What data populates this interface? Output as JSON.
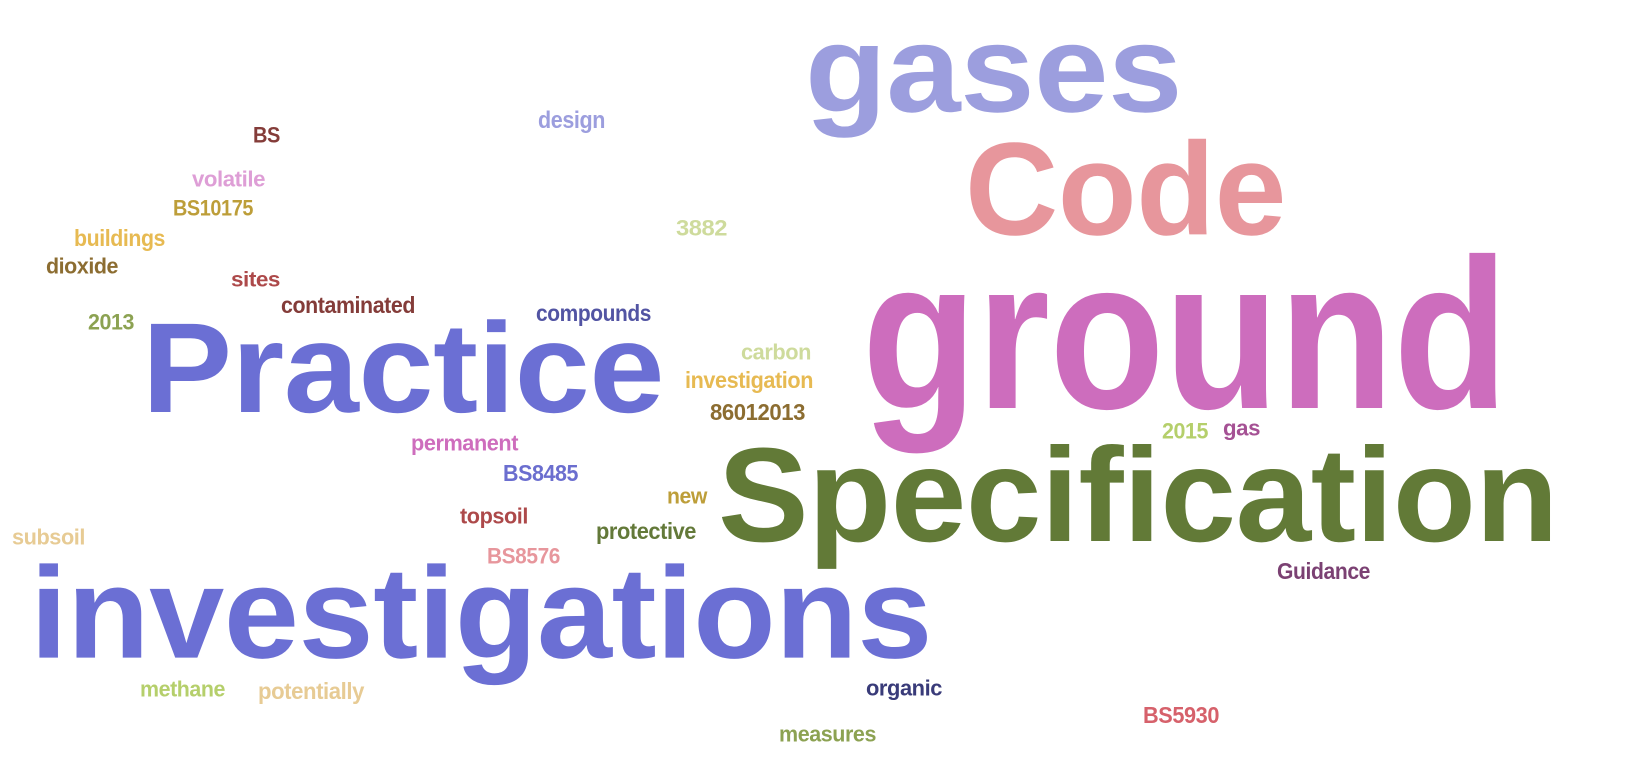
{
  "words": [
    {
      "text": "ground",
      "color": "#cd6dbd"
    },
    {
      "text": "Specification",
      "color": "#627a37"
    },
    {
      "text": "investigations",
      "color": "#6b6fd4"
    },
    {
      "text": "Practice",
      "color": "#6b6fd4"
    },
    {
      "text": "gases",
      "color": "#9c9ede"
    },
    {
      "text": "Code",
      "color": "#e7969c"
    },
    {
      "text": "design",
      "color": "#9c9ede"
    },
    {
      "text": "BS",
      "color": "#843c39"
    },
    {
      "text": "volatile",
      "color": "#de9ed6"
    },
    {
      "text": "BS10175",
      "color": "#bd9e39"
    },
    {
      "text": "buildings",
      "color": "#e7ba52"
    },
    {
      "text": "dioxide",
      "color": "#8c6d31"
    },
    {
      "text": "sites",
      "color": "#ad494a"
    },
    {
      "text": "contaminated",
      "color": "#843c39"
    },
    {
      "text": "2013",
      "color": "#8ca252"
    },
    {
      "text": "compounds",
      "color": "#5254a3"
    },
    {
      "text": "3882",
      "color": "#cedb9c"
    },
    {
      "text": "carbon",
      "color": "#cedb9c"
    },
    {
      "text": "investigation",
      "color": "#e7ba52"
    },
    {
      "text": "86012013",
      "color": "#8c6d31"
    },
    {
      "text": "permanent",
      "color": "#ce6dbd"
    },
    {
      "text": "BS8485",
      "color": "#6b6ecf"
    },
    {
      "text": "2015",
      "color": "#b5cf6b"
    },
    {
      "text": "gas",
      "color": "#a55194"
    },
    {
      "text": "new",
      "color": "#bd9e39"
    },
    {
      "text": "topsoil",
      "color": "#ad494a"
    },
    {
      "text": "protective",
      "color": "#637939"
    },
    {
      "text": "subsoil",
      "color": "#e7cb94"
    },
    {
      "text": "BS8576",
      "color": "#e7969c"
    },
    {
      "text": "Guidance",
      "color": "#7b4173"
    },
    {
      "text": "methane",
      "color": "#b5cf6b"
    },
    {
      "text": "potentially",
      "color": "#e7cb94"
    },
    {
      "text": "organic",
      "color": "#393b79"
    },
    {
      "text": "BS5930",
      "color": "#d6616b"
    },
    {
      "text": "measures",
      "color": "#8ca252"
    }
  ]
}
